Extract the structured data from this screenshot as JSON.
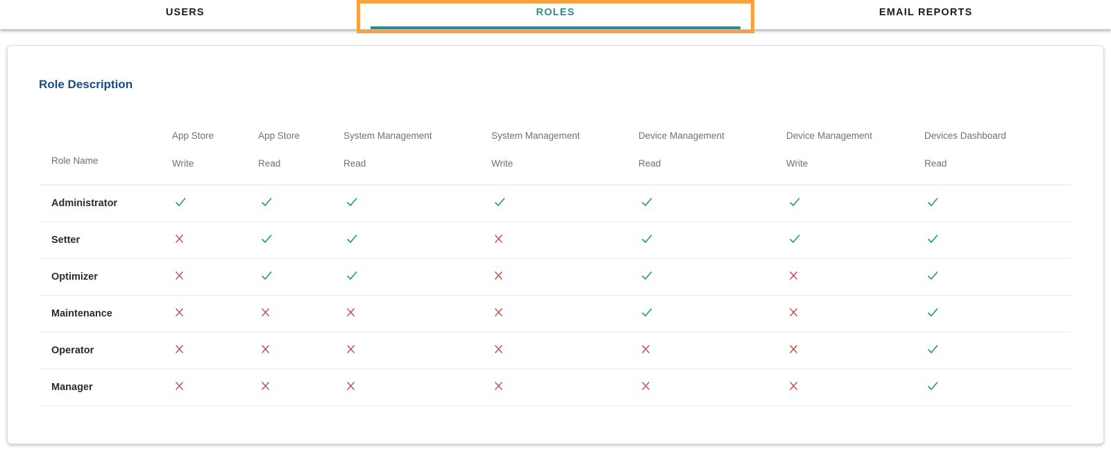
{
  "tabs": [
    {
      "label": "USERS",
      "active": false
    },
    {
      "label": "ROLES",
      "active": true
    },
    {
      "label": "EMAIL REPORTS",
      "active": false
    }
  ],
  "card": {
    "title": "Role Description",
    "table": {
      "role_name_header": "Role Name",
      "columns": [
        {
          "group": "App Store",
          "perm": "Write"
        },
        {
          "group": "App Store",
          "perm": "Read"
        },
        {
          "group": "System Management",
          "perm": "Read"
        },
        {
          "group": "System Management",
          "perm": "Write"
        },
        {
          "group": "Device Management",
          "perm": "Read"
        },
        {
          "group": "Device Management",
          "perm": "Write"
        },
        {
          "group": "Devices Dashboard",
          "perm": "Read"
        }
      ],
      "rows": [
        {
          "role": "Administrator",
          "perms": [
            true,
            true,
            true,
            true,
            true,
            true,
            true
          ]
        },
        {
          "role": "Setter",
          "perms": [
            false,
            true,
            true,
            false,
            true,
            true,
            true
          ]
        },
        {
          "role": "Optimizer",
          "perms": [
            false,
            true,
            true,
            false,
            true,
            false,
            true
          ]
        },
        {
          "role": "Maintenance",
          "perms": [
            false,
            false,
            false,
            false,
            true,
            false,
            true
          ]
        },
        {
          "role": "Operator",
          "perms": [
            false,
            false,
            false,
            false,
            false,
            false,
            true
          ]
        },
        {
          "role": "Manager",
          "perms": [
            false,
            false,
            false,
            false,
            false,
            false,
            true
          ]
        }
      ]
    }
  },
  "icons": {
    "granted": "check-icon",
    "denied": "cross-icon"
  },
  "colors": {
    "accent_teal": "#2F8A8D",
    "annotation_orange": "#F9A13C",
    "title_blue": "#1A4B82",
    "check_green": "#27A163",
    "cross_red": "#C7504F"
  }
}
